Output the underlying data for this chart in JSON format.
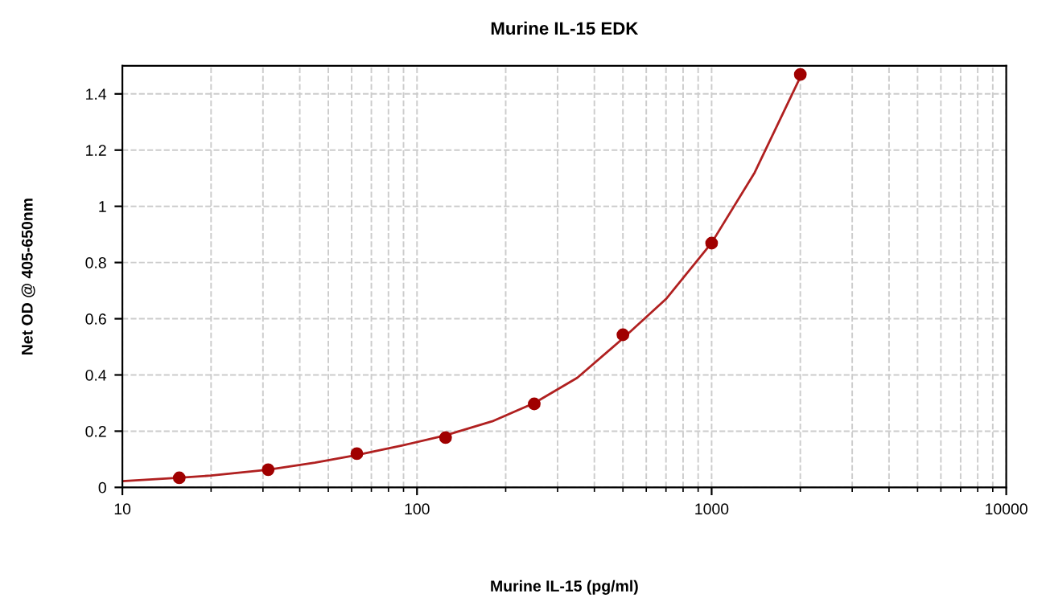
{
  "chart_data": {
    "type": "scatter",
    "title": "Murine IL-15 EDK",
    "xlabel": "Murine IL-15 (pg/ml)",
    "ylabel": "Net OD @ 405-650nm",
    "log": "x",
    "grid": true,
    "legend": false,
    "series": [
      {
        "marker": "circle",
        "color": "#a00000",
        "x": [
          15.6,
          31.25,
          62.5,
          125,
          250,
          500,
          1000,
          2000
        ],
        "values": [
          0.034,
          0.063,
          0.12,
          0.177,
          0.297,
          0.543,
          0.869,
          1.469
        ]
      },
      {
        "type": "line",
        "marker": "none",
        "color": "#b02020",
        "line_style": "solid",
        "x": [
          10,
          15.6,
          20,
          31.25,
          45,
          62.5,
          90,
          125,
          180,
          250,
          350,
          500,
          700,
          1000,
          1400,
          2000
        ],
        "values": [
          0.022,
          0.034,
          0.042,
          0.063,
          0.088,
          0.115,
          0.15,
          0.185,
          0.235,
          0.3,
          0.39,
          0.53,
          0.67,
          0.87,
          1.12,
          1.46
        ]
      }
    ],
    "xlim": [
      10,
      10000
    ],
    "xticks": [
      10,
      100,
      1000,
      10000
    ],
    "ylim": [
      0,
      1.5
    ],
    "yticks": [
      0,
      0.2,
      0.4,
      0.6,
      0.8,
      1,
      1.2,
      1.4
    ]
  }
}
